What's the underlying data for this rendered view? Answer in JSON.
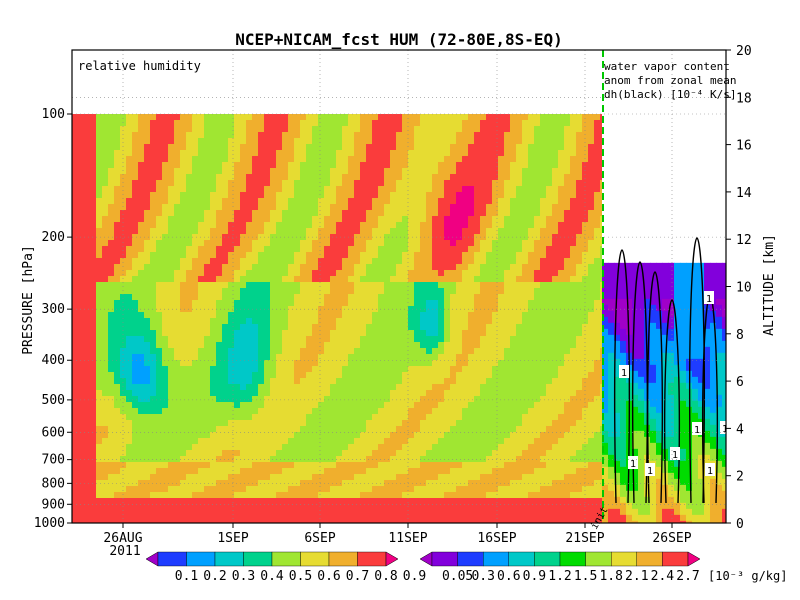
{
  "chart_data": {
    "type": "heatmap",
    "title": "NCEP+NICAM_fcst HUM (72-80E,8S-EQ)",
    "left_panel_label": "relative humidity",
    "right_panel_note": [
      "water vapor content",
      "anom from zonal mean",
      "dh(black) [10⁻⁴ K/s]"
    ],
    "ylabel": "PRESSURE [hPa]",
    "y2label": "ALTITUDE [km]",
    "yticks": [
      "100",
      "200",
      "300",
      "400",
      "500",
      "600",
      "700",
      "800",
      "900",
      "1000"
    ],
    "yticks_right": [
      "0",
      "2",
      "4",
      "6",
      "8",
      "10",
      "12",
      "14",
      "16",
      "18",
      "20"
    ],
    "xticks": [
      "26AUG",
      "1SEP",
      "6SEP",
      "11SEP",
      "16SEP",
      "21SEP",
      "26SEP"
    ],
    "year_label": "2011",
    "init_label": "init",
    "contour_label": "1",
    "grid": true,
    "colorbar_left": {
      "levels": [
        "0.1",
        "0.2",
        "0.3",
        "0.4",
        "0.5",
        "0.6",
        "0.7",
        "0.8",
        "0.9"
      ],
      "colors": [
        "#a000c8",
        "#1e3cff",
        "#00a0ff",
        "#00c8c8",
        "#00d28c",
        "#a0e632",
        "#e6dc32",
        "#f0af2d",
        "#fa3c3c",
        "#f00082"
      ]
    },
    "colorbar_right": {
      "levels": [
        "0.05",
        "0.3",
        "0.6",
        "0.9",
        "1.2",
        "1.5",
        "1.8",
        "2.1",
        "2.4",
        "2.7"
      ],
      "unit": "[10⁻³ g/kg]",
      "colors": [
        "#a000c8",
        "#8200dc",
        "#1e3cff",
        "#00a0ff",
        "#00c8c8",
        "#00d28c",
        "#00dc00",
        "#a0e632",
        "#e6dc32",
        "#f0af2d",
        "#fa3c3c",
        "#f00082"
      ]
    }
  }
}
